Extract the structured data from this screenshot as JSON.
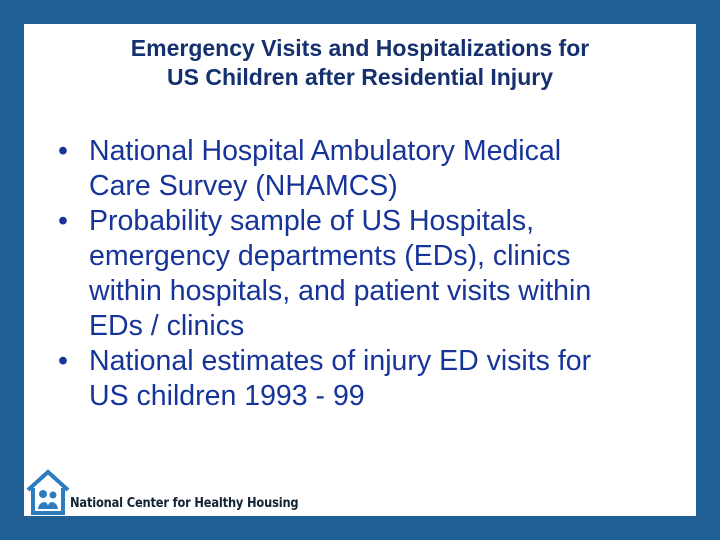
{
  "slide": {
    "title_lines": [
      "Emergency Visits and Hospitalizations for",
      "US Children after Residential Injury"
    ],
    "bullets": [
      {
        "marker": "•",
        "lines": [
          "National Hospital Ambulatory Medical",
          "Care Survey (NHAMCS)"
        ]
      },
      {
        "marker": "•",
        "lines": [
          "Probability sample of US Hospitals,",
          "emergency departments (EDs), clinics",
          "within hospitals, and patient visits within",
          "EDs / clinics"
        ]
      },
      {
        "marker": "•",
        "lines": [
          "National estimates of injury ED visits for",
          "US children 1993 - 99"
        ]
      }
    ],
    "footer": {
      "org_name": "National Center for Healthy Housing",
      "logo_icon": "house-with-family-icon"
    },
    "colors": {
      "frame": "#1f5f95",
      "title": "#15306e",
      "body_text": "#17349a",
      "logo_blue": "#2e7cc0"
    }
  }
}
